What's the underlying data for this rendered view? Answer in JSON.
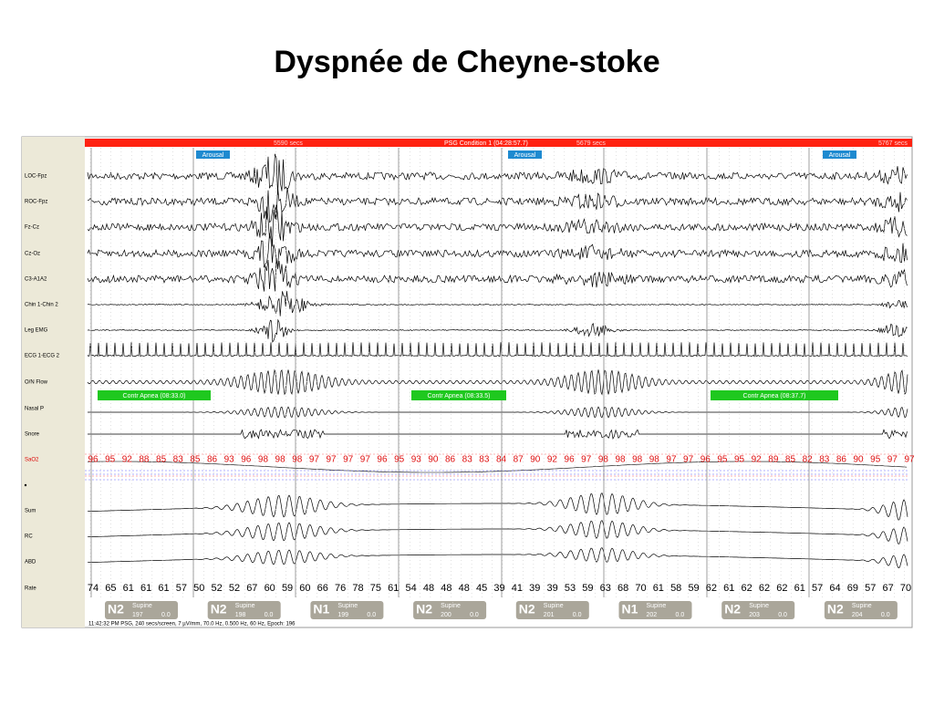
{
  "title": "Dyspnée de Cheyne-stoke",
  "header": {
    "markers": [
      "5590 secs",
      "PSG Condition 1 (04:28:57.7)",
      "5679 secs",
      "5767 secs"
    ]
  },
  "arousals": [
    "Arousal",
    "Arousal",
    "Arousal"
  ],
  "channels": [
    "LOC-Fpz",
    "ROC-Fpz",
    "Fz-Cz",
    "Cz-Oz",
    "C3-A1A2",
    "Chin 1-Chin 2",
    "Leg EMG",
    "ECG 1-ECG 2",
    "O/N Flow",
    "Nasal P",
    "Snore",
    "SaO2",
    "Sum",
    "RC",
    "ABD",
    "Rate"
  ],
  "apneas": [
    "Contr Apnea (08:33.0)",
    "Contr Apnea (08:33.5)",
    "Contr Apnea (08:37.7)"
  ],
  "sao2": [
    96,
    95,
    92,
    88,
    85,
    83,
    85,
    86,
    93,
    96,
    98,
    98,
    98,
    97,
    97,
    97,
    97,
    96,
    95,
    93,
    90,
    86,
    83,
    83,
    84,
    87,
    90,
    92,
    96,
    97,
    98,
    98,
    98,
    98,
    97,
    97,
    96,
    95,
    95,
    92,
    89,
    85,
    82,
    83,
    86,
    90,
    95,
    97,
    97
  ],
  "rate": [
    74,
    65,
    61,
    61,
    61,
    57,
    50,
    52,
    52,
    67,
    60,
    59,
    60,
    66,
    76,
    78,
    75,
    61,
    54,
    48,
    48,
    48,
    45,
    39,
    41,
    39,
    39,
    53,
    59,
    63,
    68,
    70,
    61,
    58,
    59,
    62,
    61,
    62,
    62,
    62,
    61,
    57,
    64,
    69,
    57,
    67,
    70
  ],
  "epochs": [
    {
      "stage": "N2",
      "position": "Supine",
      "epoch": "197",
      "value": "0.0"
    },
    {
      "stage": "N2",
      "position": "Supine",
      "epoch": "198",
      "value": "0.0"
    },
    {
      "stage": "N1",
      "position": "Supine",
      "epoch": "199",
      "value": "0.0"
    },
    {
      "stage": "N2",
      "position": "Supine",
      "epoch": "200",
      "value": "0.0"
    },
    {
      "stage": "N2",
      "position": "Supine",
      "epoch": "201",
      "value": "0.0"
    },
    {
      "stage": "N1",
      "position": "Supine",
      "epoch": "202",
      "value": "0.0"
    },
    {
      "stage": "N2",
      "position": "Supine",
      "epoch": "203",
      "value": "0.0"
    },
    {
      "stage": "N2",
      "position": "Supine",
      "epoch": "204",
      "value": "0.0"
    }
  ],
  "footer": "11:42:32 PM PSG, 240 secs/screen, 7 µV/mm, 70.0 Hz, 0.500 Hz, 60 Hz, Epoch: 196"
}
